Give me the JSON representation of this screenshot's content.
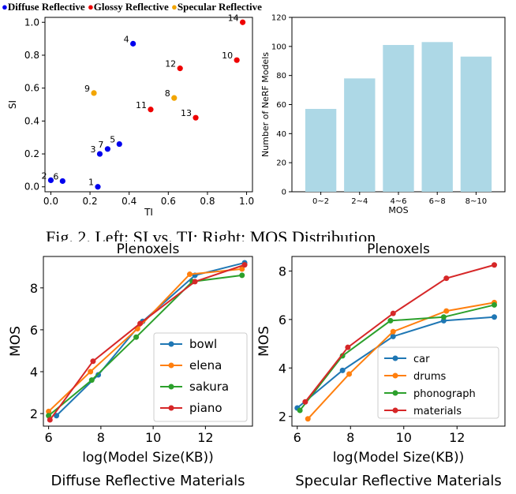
{
  "legend_top": {
    "items": [
      {
        "label": "Diffuse Reflective",
        "color": "#0000ee"
      },
      {
        "label": "Glossy Reflective",
        "color": "#ee0000"
      },
      {
        "label": "Specular Reflective",
        "color": "#f2a500"
      }
    ]
  },
  "caption_fragment": "Fig. 2. Left: SI vs. TI; Right: MOS Distribution",
  "chart_data": [
    {
      "type": "scatter",
      "xlabel": "TI",
      "ylabel": "SI",
      "xlim": [
        -0.03,
        1.03
      ],
      "ylim": [
        -0.03,
        1.03
      ],
      "xticks": [
        "0.0",
        "0.2",
        "0.4",
        "0.6",
        "0.8",
        "1.0"
      ],
      "yticks": [
        "0.0",
        "0.2",
        "0.4",
        "0.6",
        "0.8",
        "1.0"
      ],
      "points": [
        {
          "label": "1",
          "x": 0.24,
          "y": 0.0,
          "cls": "Diffuse Reflective"
        },
        {
          "label": "2",
          "x": 0.0,
          "y": 0.04,
          "cls": "Diffuse Reflective"
        },
        {
          "label": "6",
          "x": 0.06,
          "y": 0.035,
          "cls": "Diffuse Reflective"
        },
        {
          "label": "3",
          "x": 0.25,
          "y": 0.2,
          "cls": "Diffuse Reflective"
        },
        {
          "label": "7",
          "x": 0.29,
          "y": 0.23,
          "cls": "Diffuse Reflective"
        },
        {
          "label": "5",
          "x": 0.35,
          "y": 0.26,
          "cls": "Diffuse Reflective"
        },
        {
          "label": "4",
          "x": 0.42,
          "y": 0.87,
          "cls": "Diffuse Reflective"
        },
        {
          "label": "9",
          "x": 0.22,
          "y": 0.57,
          "cls": "Specular Reflective"
        },
        {
          "label": "8",
          "x": 0.63,
          "y": 0.54,
          "cls": "Specular Reflective"
        },
        {
          "label": "11",
          "x": 0.51,
          "y": 0.47,
          "cls": "Glossy Reflective"
        },
        {
          "label": "12",
          "x": 0.66,
          "y": 0.72,
          "cls": "Glossy Reflective"
        },
        {
          "label": "13",
          "x": 0.74,
          "y": 0.42,
          "cls": "Glossy Reflective"
        },
        {
          "label": "10",
          "x": 0.95,
          "y": 0.77,
          "cls": "Glossy Reflective"
        },
        {
          "label": "14",
          "x": 0.98,
          "y": 1.0,
          "cls": "Glossy Reflective"
        }
      ]
    },
    {
      "type": "bar",
      "xlabel": "MOS",
      "ylabel": "Number of NeRF Models",
      "categories": [
        "0~2",
        "2~4",
        "4~6",
        "6~8",
        "8~10"
      ],
      "values": [
        57,
        78,
        101,
        103,
        93
      ],
      "ylim": [
        0,
        120
      ],
      "yticks": [
        "0",
        "20",
        "40",
        "60",
        "80",
        "100",
        "120"
      ],
      "bar_color": "#add8e6"
    },
    {
      "type": "line",
      "title": "Plenoxels",
      "xlabel": "log(Model Size(KB))",
      "ylabel": "MOS",
      "subtitle": "Diffuse Reflective Materials",
      "xlim": [
        5.8,
        13.8
      ],
      "ylim": [
        1.4,
        9.5
      ],
      "xticks": [
        "6",
        "8",
        "10",
        "12"
      ],
      "yticks": [
        "2",
        "4",
        "6",
        "8"
      ],
      "legend": "lower-right",
      "series": [
        {
          "name": "bowl",
          "color": "#1f77b4",
          "x": [
            6.3,
            7.9,
            9.6,
            11.6,
            13.5
          ],
          "y": [
            1.9,
            3.85,
            6.4,
            8.6,
            9.2
          ]
        },
        {
          "name": "elena",
          "color": "#ff7f0e",
          "x": [
            6.0,
            7.6,
            9.4,
            11.4,
            13.4
          ],
          "y": [
            2.1,
            4.0,
            6.05,
            8.65,
            8.9
          ]
        },
        {
          "name": "sakura",
          "color": "#2ca02c",
          "x": [
            6.0,
            7.65,
            9.35,
            11.5,
            13.4
          ],
          "y": [
            1.9,
            3.6,
            5.65,
            8.3,
            8.6
          ]
        },
        {
          "name": "piano",
          "color": "#d62728",
          "x": [
            6.05,
            7.7,
            9.5,
            11.6,
            13.5
          ],
          "y": [
            1.7,
            4.5,
            6.3,
            8.3,
            9.1
          ]
        }
      ]
    },
    {
      "type": "line",
      "title": "Plenoxels",
      "xlabel": "log(Model Size(KB))",
      "ylabel": "MOS",
      "subtitle": "Specular Reflective Materials",
      "xlim": [
        5.8,
        13.8
      ],
      "ylim": [
        1.6,
        8.6
      ],
      "xticks": [
        "6",
        "8",
        "10",
        "12"
      ],
      "yticks": [
        "2",
        "4",
        "6",
        "8"
      ],
      "legend": "lower-right",
      "series": [
        {
          "name": "car",
          "color": "#1f77b4",
          "x": [
            6.0,
            7.7,
            9.6,
            11.5,
            13.4
          ],
          "y": [
            2.35,
            3.9,
            5.3,
            5.95,
            6.1
          ]
        },
        {
          "name": "drums",
          "color": "#ff7f0e",
          "x": [
            6.4,
            7.95,
            9.6,
            11.6,
            13.4
          ],
          "y": [
            1.9,
            3.75,
            5.5,
            6.35,
            6.7
          ]
        },
        {
          "name": "phonograph",
          "color": "#2ca02c",
          "x": [
            6.1,
            7.7,
            9.5,
            11.5,
            13.4
          ],
          "y": [
            2.25,
            4.5,
            5.95,
            6.1,
            6.6
          ]
        },
        {
          "name": "materials",
          "color": "#d62728",
          "x": [
            6.3,
            7.9,
            9.6,
            11.6,
            13.4
          ],
          "y": [
            2.6,
            4.85,
            6.25,
            7.7,
            8.25
          ]
        }
      ]
    }
  ]
}
